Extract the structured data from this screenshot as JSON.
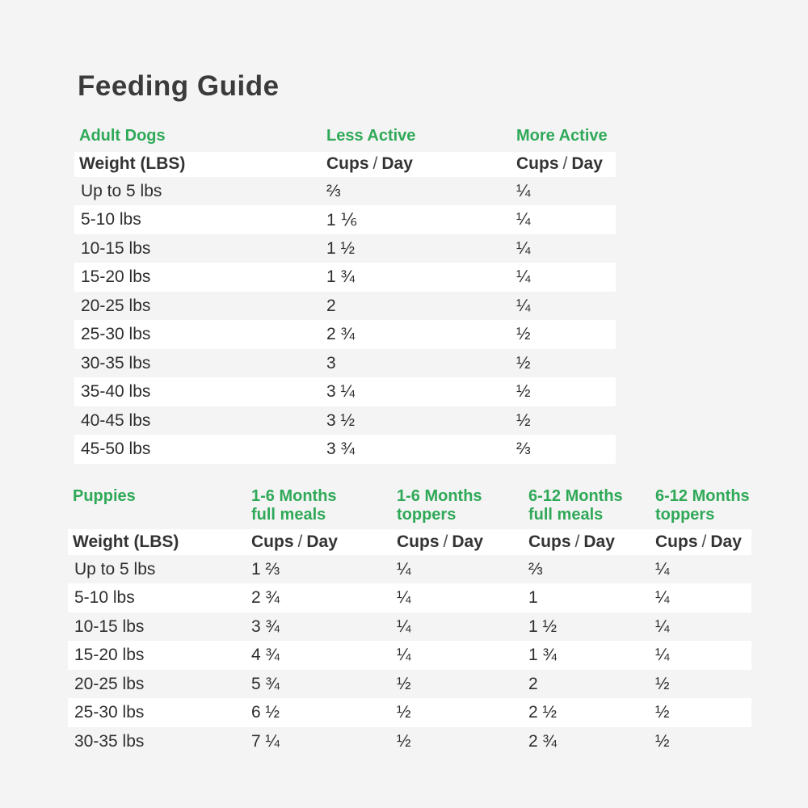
{
  "page_title": "Feeding Guide",
  "colors": {
    "background": "#f4f4f4",
    "stripe_white": "#ffffff",
    "accent_green": "#2fa958",
    "text_dark": "#3b3b3b"
  },
  "unit_header": {
    "cups": "Cups",
    "slash": "/",
    "day": "Day"
  },
  "chart_data": [
    {
      "type": "table",
      "section_label": "Adult Dogs",
      "group_headers": [
        "Less Active",
        "More Active"
      ],
      "weight_header": "Weight (LBS)",
      "unit_label": "Cups / Day",
      "rows": [
        {
          "weight": "Up to 5 lbs",
          "values": [
            "⅔",
            "¼"
          ]
        },
        {
          "weight": "5-10 lbs",
          "values": [
            "1 ⅙",
            "¼"
          ]
        },
        {
          "weight": "10-15 lbs",
          "values": [
            "1 ½",
            "¼"
          ]
        },
        {
          "weight": "15-20 lbs",
          "values": [
            "1 ¾",
            "¼"
          ]
        },
        {
          "weight": "20-25 lbs",
          "values": [
            "2",
            "¼"
          ]
        },
        {
          "weight": "25-30 lbs",
          "values": [
            "2 ¾",
            "½"
          ]
        },
        {
          "weight": "30-35 lbs",
          "values": [
            "3",
            "½"
          ]
        },
        {
          "weight": "35-40 lbs",
          "values": [
            "3 ¼",
            "½"
          ]
        },
        {
          "weight": "40-45 lbs",
          "values": [
            "3 ½",
            "½"
          ]
        },
        {
          "weight": "45-50 lbs",
          "values": [
            "3 ¾",
            "⅔"
          ]
        }
      ]
    },
    {
      "type": "table",
      "section_label": "Puppies",
      "group_headers": [
        {
          "line1": "1-6 Months",
          "line2": "full meals"
        },
        {
          "line1": "1-6 Months",
          "line2": "toppers"
        },
        {
          "line1": "6-12 Months",
          "line2": "full meals"
        },
        {
          "line1": "6-12 Months",
          "line2": "toppers"
        }
      ],
      "weight_header": "Weight (LBS)",
      "unit_label": "Cups / Day",
      "rows": [
        {
          "weight": "Up to 5 lbs",
          "values": [
            "1 ⅔",
            "¼",
            "⅔",
            "¼"
          ]
        },
        {
          "weight": "5-10 lbs",
          "values": [
            "2 ¾",
            "¼",
            "1",
            "¼"
          ]
        },
        {
          "weight": "10-15 lbs",
          "values": [
            "3 ¾",
            "¼",
            "1 ½",
            "¼"
          ]
        },
        {
          "weight": "15-20 lbs",
          "values": [
            "4 ¾",
            "¼",
            "1 ¾",
            "¼"
          ]
        },
        {
          "weight": "20-25 lbs",
          "values": [
            "5 ¾",
            "½",
            "2",
            "½"
          ]
        },
        {
          "weight": "25-30 lbs",
          "values": [
            "6 ½",
            "½",
            "2 ½",
            "½"
          ]
        },
        {
          "weight": "30-35 lbs",
          "values": [
            "7 ¼",
            "½",
            "2 ¾",
            "½"
          ]
        }
      ]
    }
  ]
}
